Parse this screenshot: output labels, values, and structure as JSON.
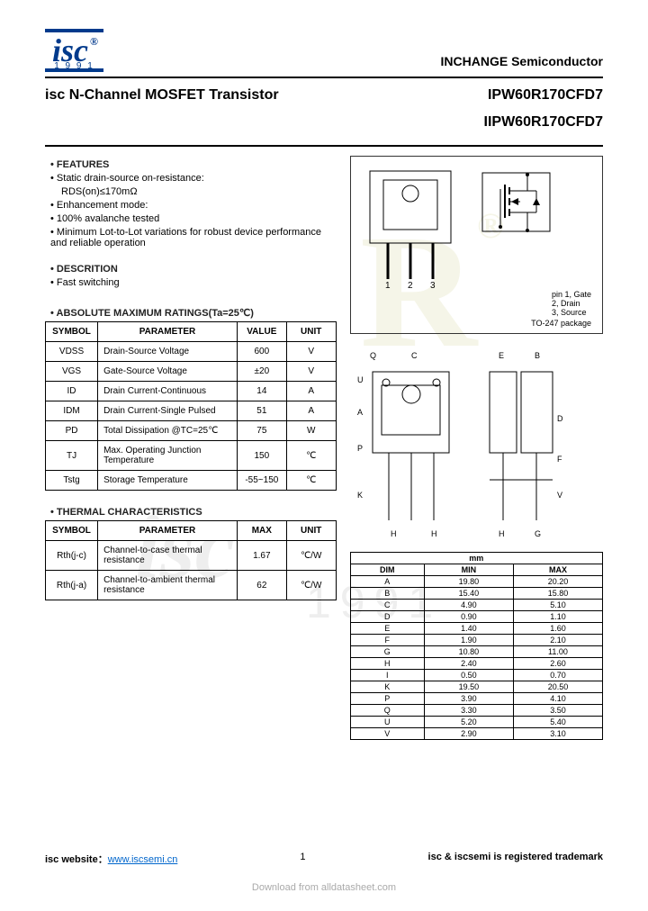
{
  "header": {
    "logo_text": "isc",
    "logo_year": "1 9 9 1",
    "company": "INCHANGE Semiconductor"
  },
  "title": {
    "product": "isc N-Channel MOSFET Transistor",
    "parts": [
      "IPW60R170CFD7",
      "IIPW60R170CFD7"
    ]
  },
  "features": {
    "heading": "FEATURES",
    "items": [
      "Static drain-source on-resistance:",
      "Enhancement mode:",
      "100% avalanche tested",
      "Minimum Lot-to-Lot variations for robust device performance and reliable operation"
    ],
    "rds": "RDS(on)≤170mΩ"
  },
  "description": {
    "heading": "DESCRITION",
    "item": "Fast switching"
  },
  "abs_max": {
    "heading": "ABSOLUTE MAXIMUM RATINGS(Ta=25℃)",
    "header": [
      "SYMBOL",
      "PARAMETER",
      "VALUE",
      "UNIT"
    ],
    "rows": [
      [
        "VDSS",
        "Drain-Source Voltage",
        "600",
        "V"
      ],
      [
        "VGS",
        "Gate-Source Voltage",
        "±20",
        "V"
      ],
      [
        "ID",
        "Drain Current-Continuous",
        "14",
        "A"
      ],
      [
        "IDM",
        "Drain Current-Single Pulsed",
        "51",
        "A"
      ],
      [
        "PD",
        "Total Dissipation @TC=25℃",
        "75",
        "W"
      ],
      [
        "TJ",
        "Max. Operating Junction Temperature",
        "150",
        "℃"
      ],
      [
        "Tstg",
        "Storage Temperature",
        "-55~150",
        "℃"
      ]
    ]
  },
  "thermal": {
    "heading": "THERMAL CHARACTERISTICS",
    "header": [
      "SYMBOL",
      "PARAMETER",
      "MAX",
      "UNIT"
    ],
    "rows": [
      [
        "Rth(j-c)",
        "Channel-to-case thermal resistance",
        "1.67",
        "℃/W"
      ],
      [
        "Rth(j-a)",
        "Channel-to-ambient thermal resistance",
        "62",
        "℃/W"
      ]
    ]
  },
  "package": {
    "pins": [
      "1",
      "2",
      "3"
    ],
    "pin_labels": "pin 1, Gate\n    2, Drain\n    3, Source",
    "pkg_name": "TO-247 package"
  },
  "dims": {
    "title": "mm",
    "header": [
      "DIM",
      "MIN",
      "MAX"
    ],
    "rows": [
      [
        "A",
        "19.80",
        "20.20"
      ],
      [
        "B",
        "15.40",
        "15.80"
      ],
      [
        "C",
        "4.90",
        "5.10"
      ],
      [
        "D",
        "0.90",
        "1.10"
      ],
      [
        "E",
        "1.40",
        "1.60"
      ],
      [
        "F",
        "1.90",
        "2.10"
      ],
      [
        "G",
        "10.80",
        "11.00"
      ],
      [
        "H",
        "2.40",
        "2.60"
      ],
      [
        "I",
        "0.50",
        "0.70"
      ],
      [
        "K",
        "19.50",
        "20.50"
      ],
      [
        "P",
        "3.90",
        "4.10"
      ],
      [
        "Q",
        "3.30",
        "3.50"
      ],
      [
        "U",
        "5.20",
        "5.40"
      ],
      [
        "V",
        "2.90",
        "3.10"
      ]
    ]
  },
  "footer": {
    "label": "isc website：",
    "url": "www.iscsemi.cn",
    "page": "1",
    "trademark": "isc & iscsemi is registered trademark"
  },
  "download": "Download from alldatasheet.com",
  "colors": {
    "brand": "#003a8c",
    "line": "#000000",
    "text": "#000000"
  }
}
